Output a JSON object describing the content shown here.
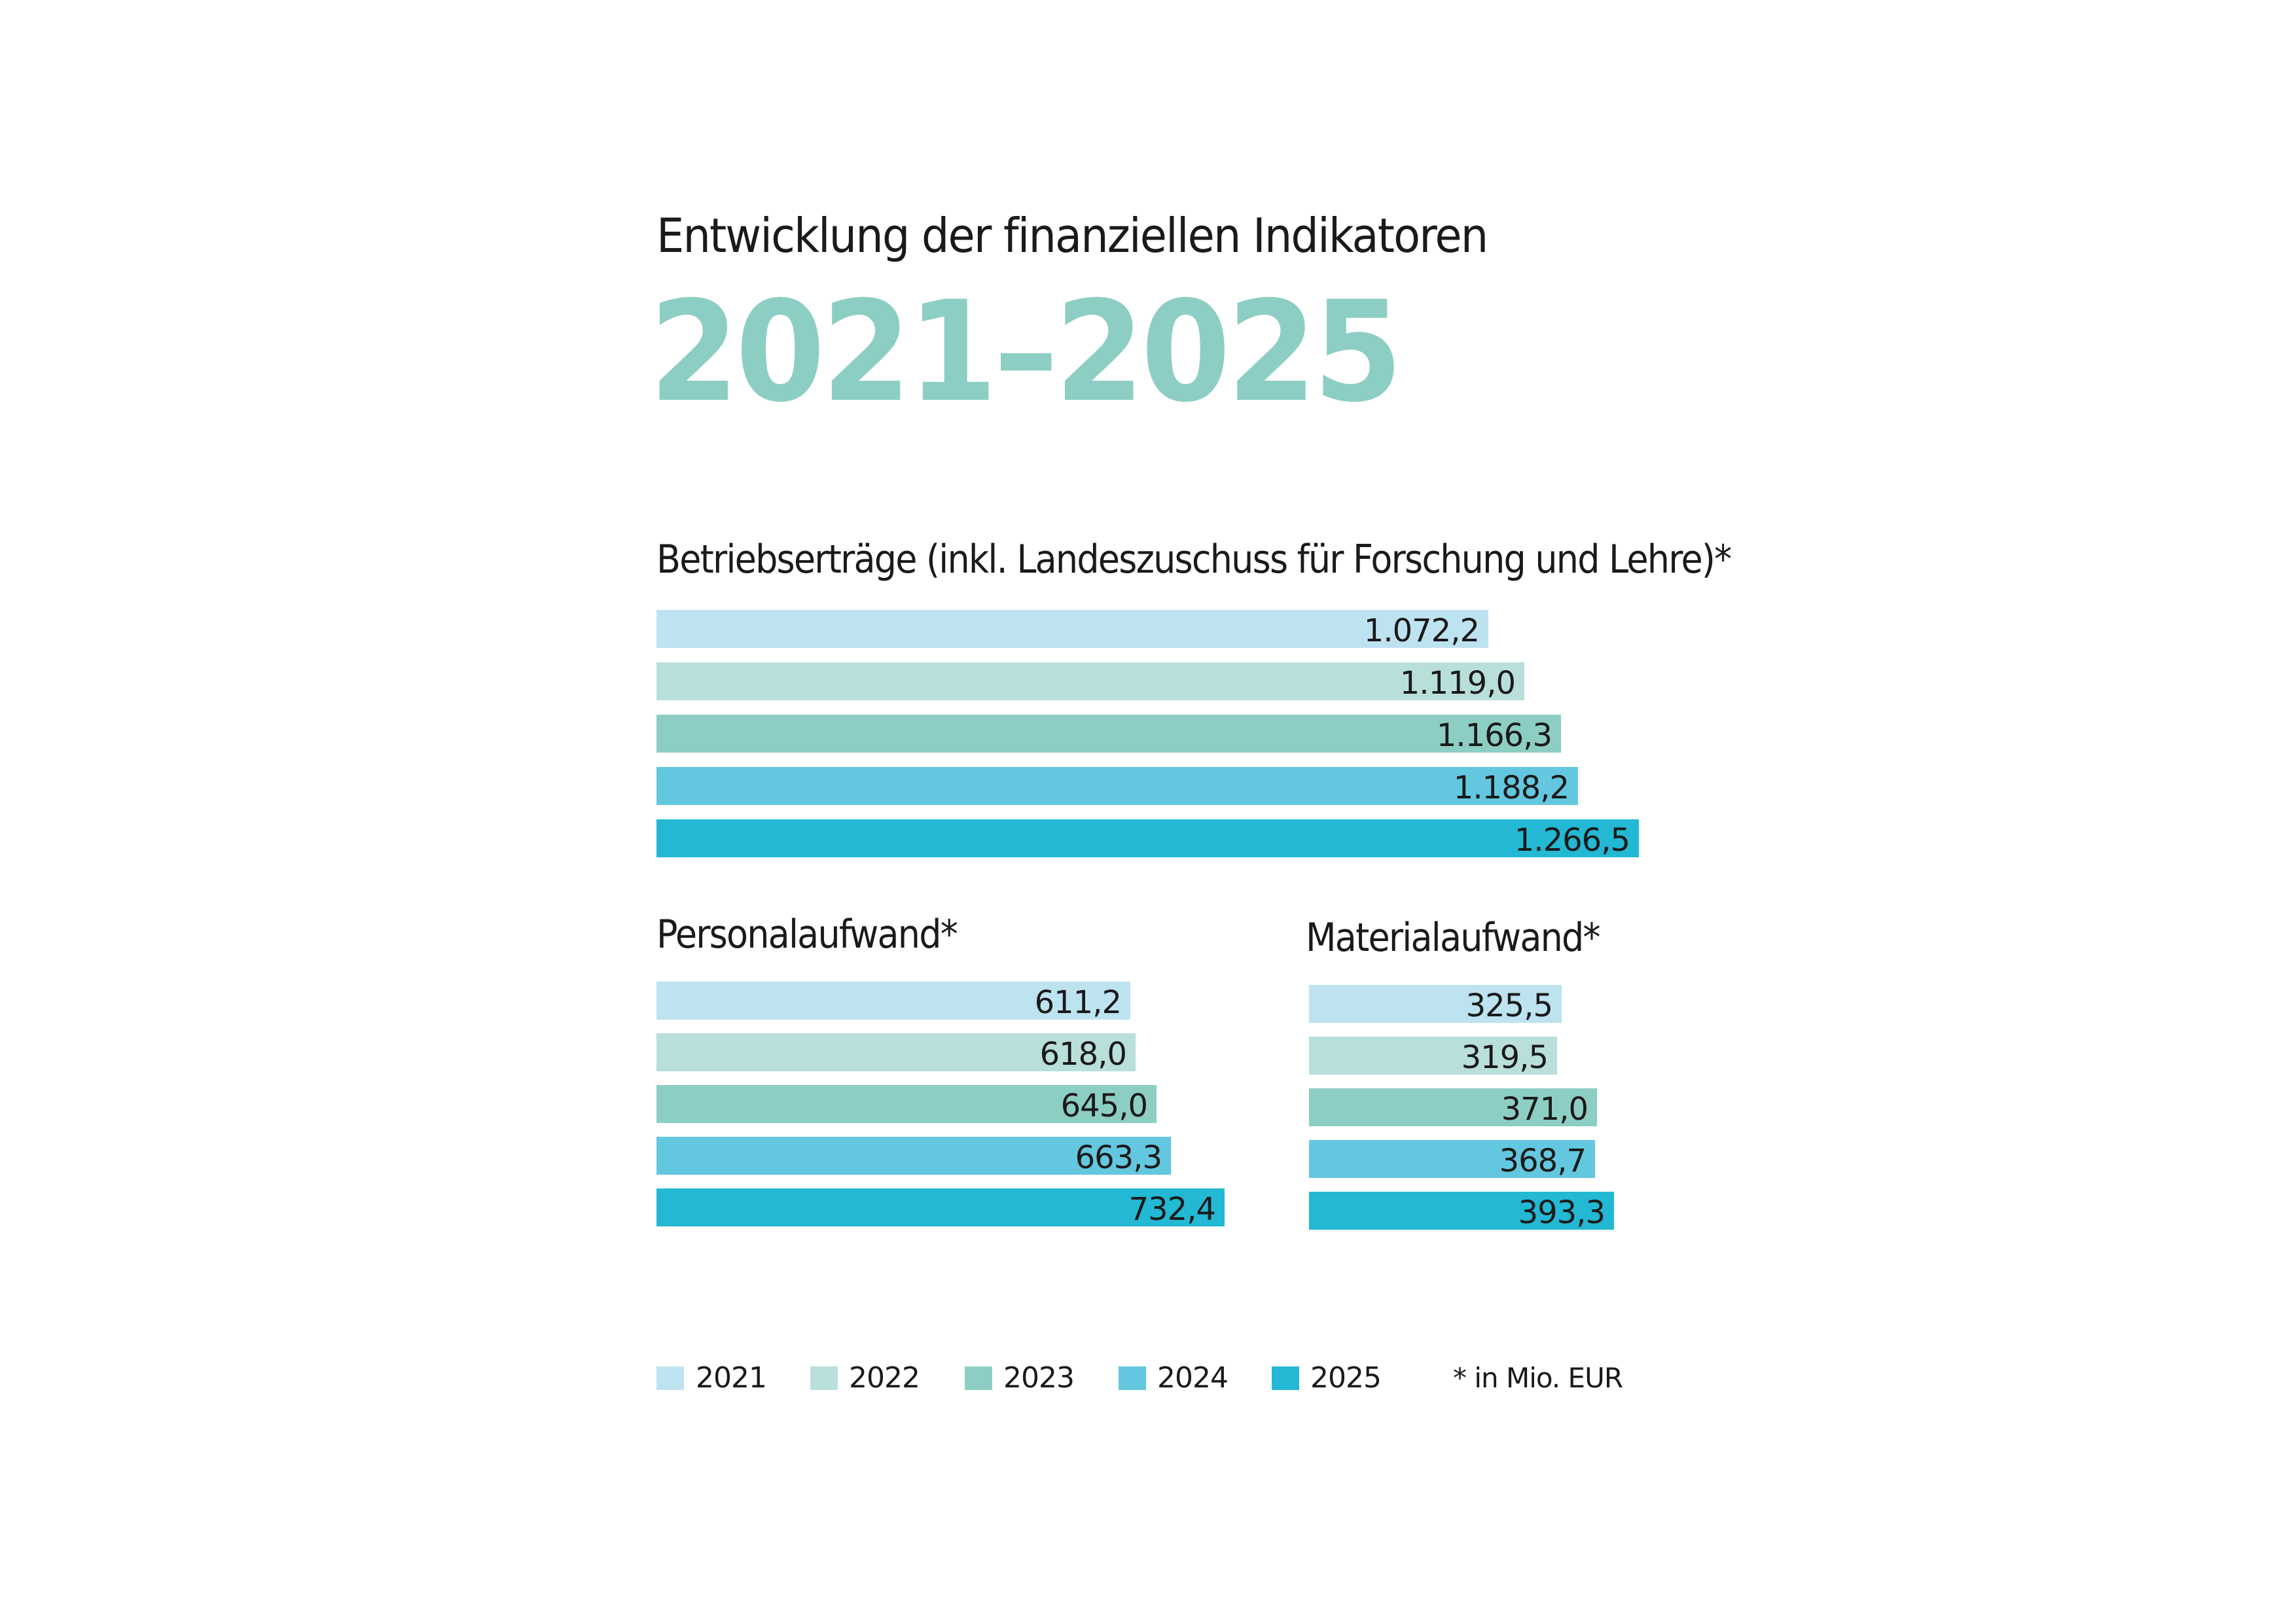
{
  "header": {
    "subtitle": "Entwicklung der finanziellen Indikatoren",
    "title": "2021–2025"
  },
  "colors": {
    "2021": "#bde3f0",
    "2022": "#b9dfdb",
    "2023": "#8dcec4",
    "2024": "#63c7df",
    "2025": "#23b8d3",
    "title": "#8dcec4"
  },
  "chart_data": [
    {
      "type": "bar",
      "orientation": "horizontal",
      "title": "Betriebserträge (inkl. Landeszuschuss für Forschung und Lehre)*",
      "categories": [
        "2021",
        "2022",
        "2023",
        "2024",
        "2025"
      ],
      "values": [
        1072.2,
        1119.0,
        1166.3,
        1188.2,
        1266.5
      ],
      "labels": [
        "1.072,2",
        "1.119,0",
        "1.166,3",
        "1.188,2",
        "1.266,5"
      ]
    },
    {
      "type": "bar",
      "orientation": "horizontal",
      "title": "Personalaufwand*",
      "categories": [
        "2021",
        "2022",
        "2023",
        "2024",
        "2025"
      ],
      "values": [
        611.2,
        618.0,
        645.0,
        663.3,
        732.4
      ],
      "labels": [
        "611,2",
        "618,0",
        "645,0",
        "663,3",
        "732,4"
      ]
    },
    {
      "type": "bar",
      "orientation": "horizontal",
      "title": "Materialaufwand*",
      "categories": [
        "2021",
        "2022",
        "2023",
        "2024",
        "2025"
      ],
      "values": [
        325.5,
        319.5,
        371.0,
        368.7,
        393.3
      ],
      "labels": [
        "325,5",
        "319,5",
        "371,0",
        "368,7",
        "393,3"
      ]
    }
  ],
  "legend": {
    "items": [
      "2021",
      "2022",
      "2023",
      "2024",
      "2025"
    ],
    "note": "* in Mio. EUR"
  }
}
